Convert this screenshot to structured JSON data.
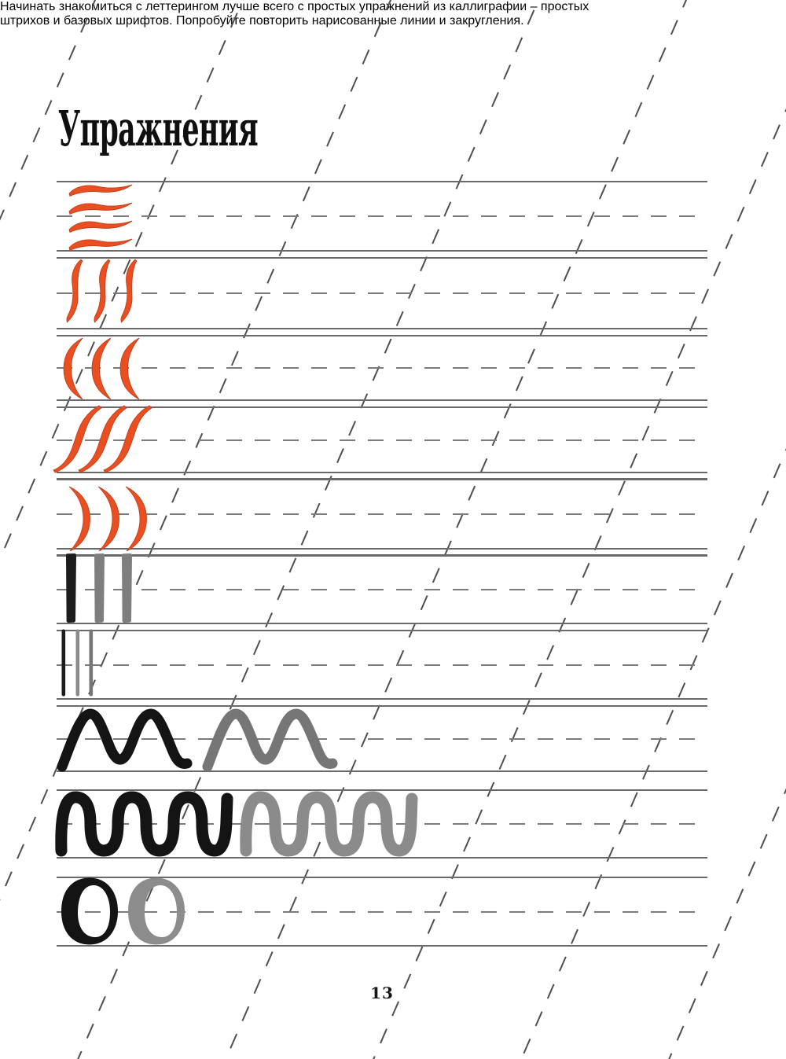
{
  "page": {
    "title": "Упражнения",
    "intro_line1": "Начинать знакомиться с леттерингом лучше всего с простых упражнений из каллиграфии – простых",
    "intro_line2": "штрихов и базовых шрифтов. Попробуйте повторить нарисованные линии и закругления.",
    "page_number": "13"
  },
  "colors": {
    "accent_orange": "#e94f20",
    "orange_edge": "#bc3a16",
    "ink_black": "#161616",
    "stroke_gray": "#7e7e7e",
    "rule_gray": "#6a6a6a",
    "dash_gray": "#7c7c7c",
    "slant_guide_gray": "#4f4f4f"
  },
  "practice_rows": [
    {
      "label": "horizontal-wave-strokes",
      "glyph": "hwave",
      "stroke_colors": [
        "#e94f20",
        "#e94f20",
        "#e94f20",
        "#e94f20"
      ]
    },
    {
      "label": "vertical-wave-strokes",
      "glyph": "vwave",
      "stroke_colors": [
        "#e94f20",
        "#e94f20",
        "#e94f20"
      ]
    },
    {
      "label": "c-curve-strokes",
      "glyph": "ccurve",
      "stroke_colors": [
        "#e94f20",
        "#e94f20",
        "#e94f20"
      ]
    },
    {
      "label": "s-curve-strokes",
      "glyph": "swave",
      "stroke_colors": [
        "#e94f20",
        "#e94f20",
        "#e94f20"
      ]
    },
    {
      "label": "paren-curve-strokes",
      "glyph": "paren",
      "stroke_colors": [
        "#e94f20",
        "#e94f20",
        "#e94f20"
      ]
    },
    {
      "label": "thick-vertical-strokes",
      "glyph": "bar",
      "stroke_colors": [
        "#1c1c1c",
        "#7e7e7e",
        "#7e7e7e"
      ]
    },
    {
      "label": "thin-vertical-strokes",
      "glyph": "thinbar",
      "stroke_colors": [
        "#1c1c1c",
        "#8a8a8a",
        "#777777"
      ]
    },
    {
      "label": "zigzag-strokes",
      "glyph": "zigzag",
      "stroke_colors": [
        "#141414",
        "#767676"
      ]
    },
    {
      "label": "loop-coil-strokes",
      "glyph": "coil",
      "stroke_colors": [
        "#141414",
        "#8b8b8b"
      ]
    },
    {
      "label": "oval-strokes",
      "glyph": "oval",
      "stroke_colors": [
        "#141414",
        "#8c8c8c"
      ]
    }
  ]
}
